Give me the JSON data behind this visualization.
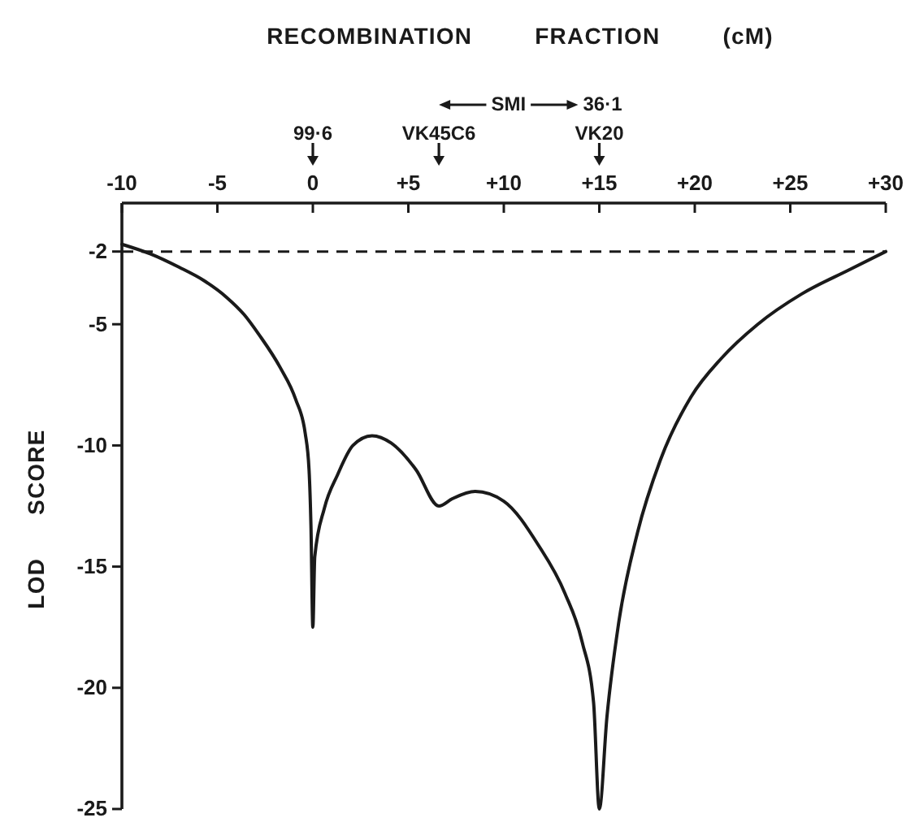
{
  "chart_data": {
    "type": "line",
    "title": "RECOMBINATION FRACTION (cM)",
    "ylabel": "LOD SCORE",
    "series": [
      {
        "color": "#1a1a1a",
        "x": [
          -10,
          -8.5,
          -7,
          -5.7,
          -4.5,
          -3.6,
          -2.8,
          -1.7,
          -0.9,
          -0.4,
          -0.2,
          -0.1,
          0,
          0.1,
          0.6,
          1.3,
          2.1,
          3.1,
          4.1,
          5.4,
          6.6,
          7.3,
          8.5,
          10,
          11.8,
          13.2,
          14.1,
          14.7,
          15,
          15.4,
          16,
          17,
          18.2,
          19.8,
          21.4,
          23.3,
          25.6,
          28.1,
          30
        ],
        "values": [
          -1.7,
          -2.1,
          -2.65,
          -3.2,
          -3.9,
          -4.6,
          -5.45,
          -6.8,
          -8.1,
          -9.5,
          -11,
          -13.3,
          -17.5,
          -14.6,
          -12.6,
          -11.2,
          -10,
          -9.6,
          -9.9,
          -11,
          -12.5,
          -12.2,
          -11.9,
          -12.3,
          -14.1,
          -16.1,
          -18.1,
          -20.6,
          -25,
          -21.2,
          -17.4,
          -13.6,
          -10.6,
          -8,
          -6.4,
          -5,
          -3.75,
          -2.75,
          -2
        ]
      }
    ],
    "xlim": [
      -10,
      30
    ],
    "xticks": [
      -10,
      -5,
      0,
      {
        "value": 5,
        "label": "+5"
      },
      {
        "value": 10,
        "label": "+10"
      },
      {
        "value": 15,
        "label": "+15"
      },
      {
        "value": 20,
        "label": "+20"
      },
      {
        "value": 25,
        "label": "+25"
      },
      {
        "value": 30,
        "label": "+30"
      }
    ],
    "ylim": [
      -25,
      0
    ],
    "yticks": [
      -25,
      -20,
      -15,
      -10,
      -5,
      -2
    ],
    "ref_lines": [
      {
        "axis": "y",
        "value": -2,
        "line_style": "dashed",
        "color": "#1a1a1a"
      }
    ],
    "annotations": [
      "SMI",
      "36·1",
      "99·6",
      "VK45C6",
      "VK20"
    ]
  }
}
